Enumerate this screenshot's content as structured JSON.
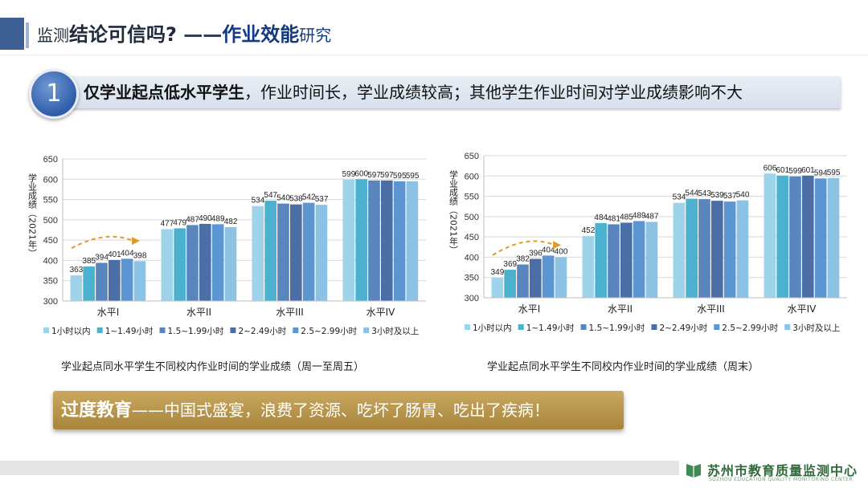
{
  "header": {
    "title_part1": "监测",
    "title_part2": "结论可信吗?",
    "title_dash": " ——",
    "title_part3": "作业效能",
    "title_part4": "研究"
  },
  "finding": {
    "number": "1",
    "bold": "仅学业起点低水平学生",
    "rest": "，作业时间长，学业成绩较高；其他学生作业时间对学业成绩影响不大"
  },
  "chart_data": [
    {
      "type": "bar",
      "ylabel": "学业成绩（2021年）",
      "ylim": [
        300,
        650
      ],
      "yticks": [
        300,
        350,
        400,
        450,
        500,
        550,
        600,
        650
      ],
      "categories": [
        "水平I",
        "水平II",
        "水平III",
        "水平IV"
      ],
      "series": [
        {
          "name": "1小时以内",
          "color": "#9ed3ea",
          "values": [
            363,
            477,
            534,
            599
          ]
        },
        {
          "name": "1~1.49小时",
          "color": "#4bb1cf",
          "values": [
            385,
            479,
            547,
            600
          ]
        },
        {
          "name": "1.5~1.99小时",
          "color": "#5a86bf",
          "values": [
            394,
            487,
            540,
            597
          ]
        },
        {
          "name": "2~2.49小时",
          "color": "#4a6ea5",
          "values": [
            401,
            490,
            538,
            597
          ]
        },
        {
          "name": "2.5~2.99小时",
          "color": "#5b95d2",
          "values": [
            404,
            489,
            542,
            595
          ]
        },
        {
          "name": "3小时及以上",
          "color": "#8cc2e4",
          "values": [
            398,
            482,
            537,
            595
          ]
        }
      ],
      "caption": "学业起点同水平学生不同校内作业时间的学业成绩（周一至周五）"
    },
    {
      "type": "bar",
      "ylabel": "学业成绩（2021年）",
      "ylim": [
        300,
        650
      ],
      "yticks": [
        300,
        350,
        400,
        450,
        500,
        550,
        600,
        650
      ],
      "categories": [
        "水平I",
        "水平II",
        "水平III",
        "水平IV"
      ],
      "series": [
        {
          "name": "1小时以内",
          "color": "#9ed3ea",
          "values": [
            349,
            452,
            534,
            606
          ]
        },
        {
          "name": "1~1.49小时",
          "color": "#4bb1cf",
          "values": [
            369,
            484,
            544,
            601
          ]
        },
        {
          "name": "1.5~1.99小时",
          "color": "#5a86bf",
          "values": [
            382,
            481,
            543,
            599
          ]
        },
        {
          "name": "2~2.49小时",
          "color": "#4a6ea5",
          "values": [
            396,
            485,
            539,
            601
          ]
        },
        {
          "name": "2.5~2.99小时",
          "color": "#5b95d2",
          "values": [
            404,
            489,
            537,
            594
          ]
        },
        {
          "name": "3小时及以上",
          "color": "#8cc2e4",
          "values": [
            400,
            487,
            540,
            595
          ]
        }
      ],
      "caption": "学业起点同水平学生不同校内作业时间的学业成绩（周末）"
    }
  ],
  "conclusion": {
    "bold": "过度教育",
    "rest": "——中国式盛宴，浪费了资源、吃坏了肠胃、吃出了疾病！"
  },
  "footer": {
    "org": "苏州市教育质量监测中心",
    "org_en": "SUZHOU EDUCATION QUALITY MONITORING CENTER",
    "logo_icon": "book-icon"
  },
  "colors": {
    "accent": "#3d5f93",
    "arrow": "#e09a2a",
    "box": "#b8944a"
  }
}
